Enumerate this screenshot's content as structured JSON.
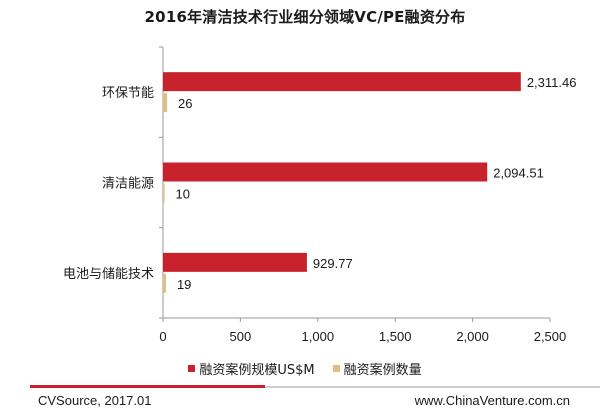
{
  "colors": {
    "series1": "#c8232c",
    "series2": "#e2bd7f",
    "axis": "#9a9a9a",
    "footer_red": "#c8232c",
    "footer_gray": "#cccccc"
  },
  "chart_data": {
    "type": "bar",
    "orientation": "horizontal",
    "title": "2016年清洁技术行业细分领域VC/PE融资分布",
    "categories": [
      "环保节能",
      "清洁能源",
      "电池与储能技术"
    ],
    "series": [
      {
        "name": "融资案例规模US$M",
        "values": [
          2311.46,
          2094.51,
          929.77
        ],
        "labels": [
          "2,311.46",
          "2,094.51",
          "929.77"
        ]
      },
      {
        "name": "融资案例数量",
        "values": [
          26,
          10,
          19
        ],
        "labels": [
          "26",
          "10",
          "19"
        ]
      }
    ],
    "xlim": [
      0,
      2500
    ],
    "xticks": [
      {
        "value": 0,
        "label": "0"
      },
      {
        "value": 500,
        "label": "500"
      },
      {
        "value": 1000,
        "label": "1,000"
      },
      {
        "value": 1500,
        "label": "1,500"
      },
      {
        "value": 2000,
        "label": "2,000"
      },
      {
        "value": 2500,
        "label": "2,500"
      }
    ],
    "grid": false,
    "legend_position": "bottom"
  },
  "footer": {
    "source": "CVSource, 2017.01",
    "website": "www.ChinaVenture.com.cn"
  }
}
